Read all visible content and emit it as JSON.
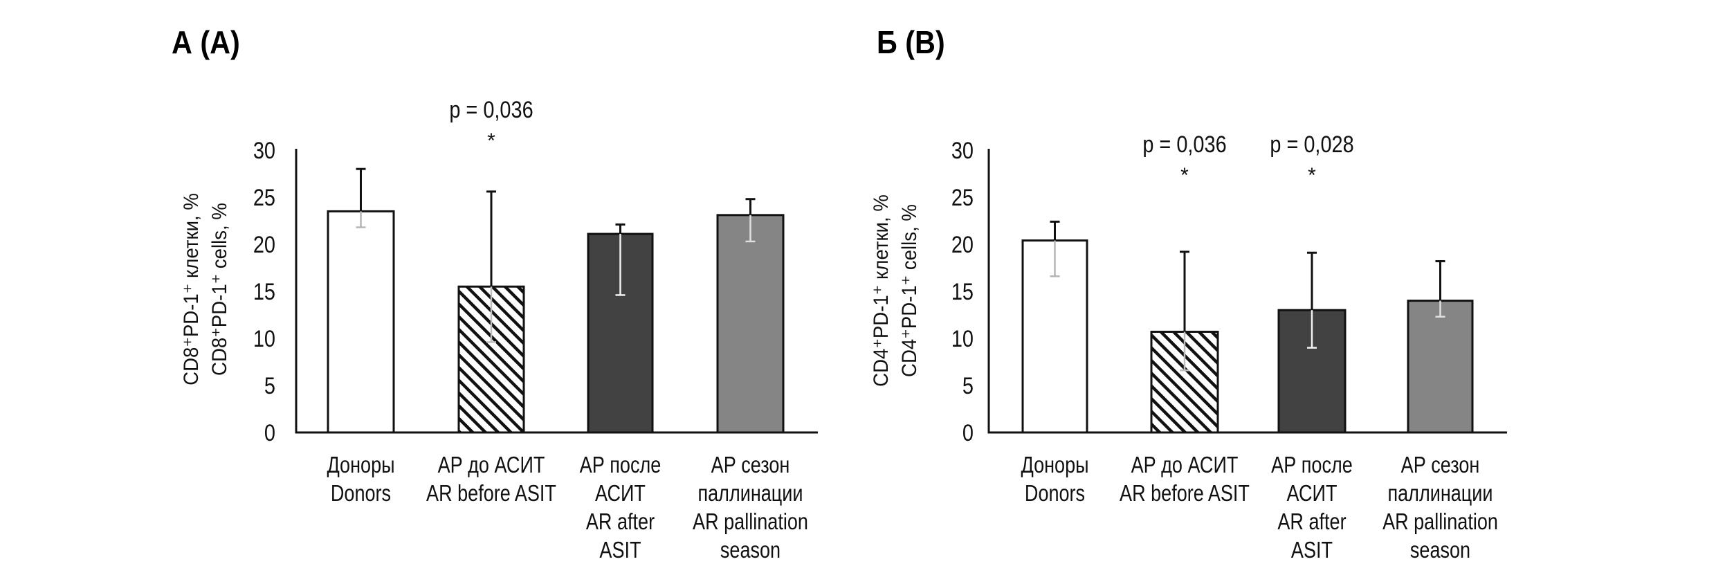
{
  "chart_data": [
    {
      "type": "bar",
      "panel_title": "А (A)",
      "ylabel_lines": [
        "CD8⁺PD-1⁺ клетки, %",
        "CD8⁺PD-1⁺ cells, %"
      ],
      "ylim": [
        0,
        30
      ],
      "yticks": [
        "0",
        "5",
        "10",
        "15",
        "20",
        "25",
        "30"
      ],
      "grid": false,
      "categories": [
        [
          "Доноры",
          "Donors"
        ],
        [
          "АР до АСИТ",
          "AR before ASIT"
        ],
        [
          "АР после",
          "АСИТ",
          "AR after",
          "ASIT"
        ],
        [
          "АР сезон",
          "паллинации",
          "AR pallination",
          "season"
        ]
      ],
      "values": [
        23.5,
        15.5,
        21.1,
        23.1
      ],
      "error_upper": [
        28.0,
        25.6,
        22.1,
        24.8
      ],
      "error_lower": [
        21.8,
        9.6,
        14.6,
        20.3
      ],
      "fills": [
        "#ffffff",
        "hatch",
        "#424242",
        "#858585"
      ],
      "annotations": [
        {
          "category_index": 1,
          "p_text": "p = 0,036",
          "star": "*"
        }
      ]
    },
    {
      "type": "bar",
      "panel_title": "Б (B)",
      "ylabel_lines": [
        "CD4⁺PD-1⁺ клетки, %",
        "CD4⁺PD-1⁺ cells, %"
      ],
      "ylim": [
        0,
        30
      ],
      "yticks": [
        "0",
        "5",
        "10",
        "15",
        "20",
        "25",
        "30"
      ],
      "grid": false,
      "categories": [
        [
          "Доноры",
          "Donors"
        ],
        [
          "АР до АСИТ",
          "AR before ASIT"
        ],
        [
          "АР после",
          "АСИТ",
          "AR after",
          "ASIT"
        ],
        [
          "АР сезон",
          "паллинации",
          "AR pallination",
          "season"
        ]
      ],
      "values": [
        20.4,
        10.7,
        13.0,
        14.0
      ],
      "error_upper": [
        22.4,
        19.2,
        19.1,
        18.2
      ],
      "error_lower": [
        16.6,
        6.6,
        9.0,
        12.3
      ],
      "fills": [
        "#ffffff",
        "hatch",
        "#424242",
        "#858585"
      ],
      "annotations": [
        {
          "category_index": 1,
          "p_text": "p = 0,036",
          "star": "*"
        },
        {
          "category_index": 2,
          "p_text": "p = 0,028",
          "star": "*"
        }
      ]
    }
  ]
}
